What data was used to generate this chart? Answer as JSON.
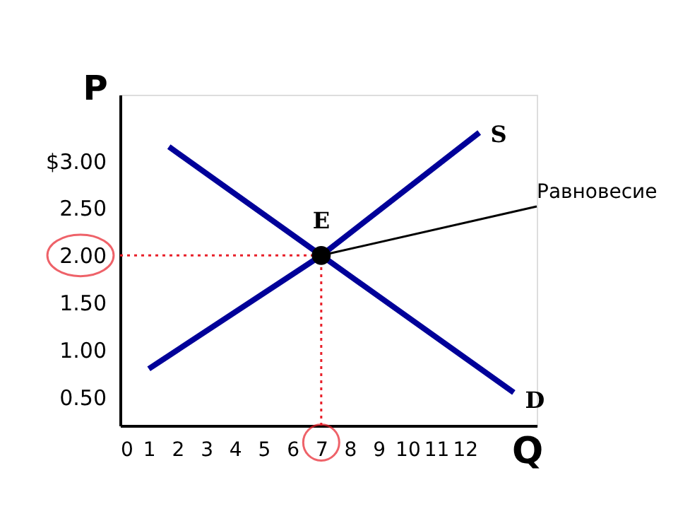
{
  "chart_data": {
    "type": "line",
    "xlabel": "Q",
    "ylabel": "P",
    "xlim": [
      0,
      14.5
    ],
    "ylim": [
      0.2,
      3.7
    ],
    "xticks": [
      0,
      1,
      2,
      3,
      4,
      5,
      6,
      7,
      8,
      9,
      10,
      11,
      12
    ],
    "yticks": [
      {
        "value": 0.5,
        "label": "0.50"
      },
      {
        "value": 1,
        "label": "1.00"
      },
      {
        "value": 1.5,
        "label": "1.50"
      },
      {
        "value": 2,
        "label": "2.00"
      },
      {
        "value": 2.5,
        "label": "2.50"
      },
      {
        "value": 3,
        "label": "$3.00"
      }
    ],
    "series": [
      {
        "name": "S",
        "color": "#000099",
        "x": [
          1,
          7,
          12.5
        ],
        "values": [
          0.8,
          2,
          3.3
        ],
        "marker": "none"
      },
      {
        "name": "D",
        "color": "#000099",
        "x": [
          1.7,
          7,
          13.7
        ],
        "values": [
          3.15,
          2,
          0.55
        ],
        "marker": "none"
      },
      {
        "name": "E",
        "type": "scatter",
        "color": "#000000",
        "x": [
          7
        ],
        "values": [
          2
        ],
        "marker": "circle"
      }
    ],
    "ref_lines": [
      {
        "axis": "y",
        "value": 2,
        "color": "#e8202a",
        "line_style": "dotted"
      },
      {
        "axis": "x",
        "value": 7,
        "color": "#e8202a",
        "line_style": "dotted"
      }
    ],
    "annotations": [
      {
        "text": "Равновесие",
        "x": 7,
        "y": 2
      }
    ],
    "grid": false
  }
}
